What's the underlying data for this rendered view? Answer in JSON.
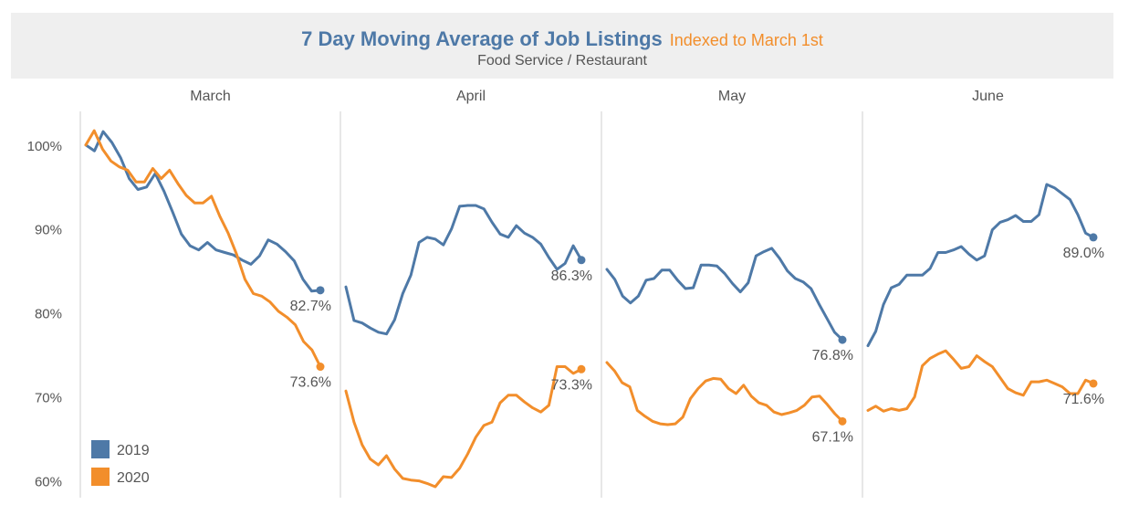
{
  "header": {
    "title": "7 Day Moving Average of Job Listings",
    "title_accent": "Indexed to March 1st",
    "subtitle": "Food Service / Restaurant"
  },
  "chart_data": {
    "type": "line",
    "y_unit": "%",
    "ylim": [
      58,
      104
    ],
    "yticks": [
      {
        "value": 100,
        "label": "100%"
      },
      {
        "value": 90,
        "label": "90%"
      },
      {
        "value": 80,
        "label": "80%"
      },
      {
        "value": 70,
        "label": "70%"
      },
      {
        "value": 60,
        "label": "60%"
      }
    ],
    "legend": {
      "placement": "bottom-left",
      "entries": [
        {
          "name": "2019",
          "color": "#4e79a7"
        },
        {
          "name": "2020",
          "color": "#f28e2b"
        }
      ]
    },
    "panels": [
      {
        "month": "March",
        "series": [
          {
            "name": "2019",
            "color": "#4e79a7",
            "end_label": "82.7%",
            "values": [
              100,
              99.3,
              101.6,
              100.3,
              98.5,
              96.0,
              94.7,
              95.0,
              96.6,
              94.5,
              92.0,
              89.4,
              88.0,
              87.5,
              88.4,
              87.5,
              87.2,
              86.9,
              86.3,
              85.8,
              86.8,
              88.7,
              88.2,
              87.3,
              86.2,
              84.0,
              82.6,
              82.7
            ]
          },
          {
            "name": "2020",
            "color": "#f28e2b",
            "end_label": "73.6%",
            "values": [
              100,
              101.7,
              99.5,
              98.1,
              97.4,
              97.0,
              95.6,
              95.6,
              97.2,
              96.0,
              97.0,
              95.4,
              94.0,
              93.1,
              93.1,
              93.9,
              91.5,
              89.5,
              87.0,
              84.0,
              82.3,
              82.0,
              81.3,
              80.2,
              79.5,
              78.6,
              76.6,
              75.6,
              73.6
            ]
          }
        ]
      },
      {
        "month": "April",
        "series": [
          {
            "name": "2019",
            "color": "#4e79a7",
            "end_label": "86.3%",
            "values": [
              83.1,
              79.1,
              78.8,
              78.2,
              77.7,
              77.5,
              79.2,
              82.3,
              84.5,
              88.4,
              89.0,
              88.8,
              88.1,
              90.0,
              92.7,
              92.8,
              92.8,
              92.4,
              90.8,
              89.4,
              89.0,
              90.4,
              89.5,
              89.0,
              88.2,
              86.6,
              85.2,
              85.9,
              88.0,
              86.3
            ]
          },
          {
            "name": "2020",
            "color": "#f28e2b",
            "end_label": "73.3%",
            "values": [
              70.7,
              67.0,
              64.3,
              62.6,
              61.9,
              63.0,
              61.4,
              60.3,
              60.1,
              60.0,
              59.7,
              59.3,
              60.5,
              60.4,
              61.5,
              63.2,
              65.2,
              66.6,
              67.0,
              69.3,
              70.2,
              70.2,
              69.4,
              68.7,
              68.2,
              69.0,
              73.6,
              73.6,
              72.8,
              73.3
            ]
          }
        ]
      },
      {
        "month": "May",
        "series": [
          {
            "name": "2019",
            "color": "#4e79a7",
            "end_label": "76.8%",
            "values": [
              85.2,
              84.0,
              82.0,
              81.2,
              82.0,
              83.9,
              84.1,
              85.1,
              85.1,
              83.9,
              82.9,
              83.0,
              85.7,
              85.7,
              85.6,
              84.7,
              83.5,
              82.5,
              83.6,
              86.8,
              87.3,
              87.7,
              86.5,
              85.0,
              84.1,
              83.7,
              82.9,
              81.1,
              79.4,
              77.7,
              76.8
            ]
          },
          {
            "name": "2020",
            "color": "#f28e2b",
            "end_label": "67.1%",
            "values": [
              74.1,
              73.1,
              71.7,
              71.2,
              68.4,
              67.7,
              67.1,
              66.8,
              66.7,
              66.8,
              67.6,
              69.8,
              71.0,
              71.9,
              72.2,
              72.1,
              71.0,
              70.4,
              71.4,
              70.1,
              69.3,
              69.0,
              68.2,
              67.9,
              68.1,
              68.4,
              69.0,
              70.0,
              70.1,
              69.1,
              68.0,
              67.1
            ]
          }
        ]
      },
      {
        "month": "June",
        "series": [
          {
            "name": "2019",
            "color": "#4e79a7",
            "end_label": "89.0%",
            "values": [
              76.1,
              77.8,
              81.0,
              83.0,
              83.4,
              84.5,
              84.5,
              84.5,
              85.3,
              87.2,
              87.2,
              87.5,
              87.9,
              87.0,
              86.3,
              86.8,
              89.9,
              90.8,
              91.1,
              91.6,
              90.9,
              90.9,
              91.7,
              95.3,
              94.9,
              94.2,
              93.5,
              91.7,
              89.5,
              89.0
            ]
          },
          {
            "name": "2020",
            "color": "#f28e2b",
            "end_label": "71.6%",
            "values": [
              68.4,
              68.9,
              68.3,
              68.6,
              68.4,
              68.6,
              70.0,
              73.7,
              74.6,
              75.1,
              75.5,
              74.5,
              73.4,
              73.6,
              74.9,
              74.2,
              73.6,
              72.3,
              71.0,
              70.5,
              70.2,
              71.8,
              71.8,
              72.0,
              71.6,
              71.2,
              70.4,
              70.4,
              72.0,
              71.6
            ]
          }
        ]
      }
    ]
  }
}
